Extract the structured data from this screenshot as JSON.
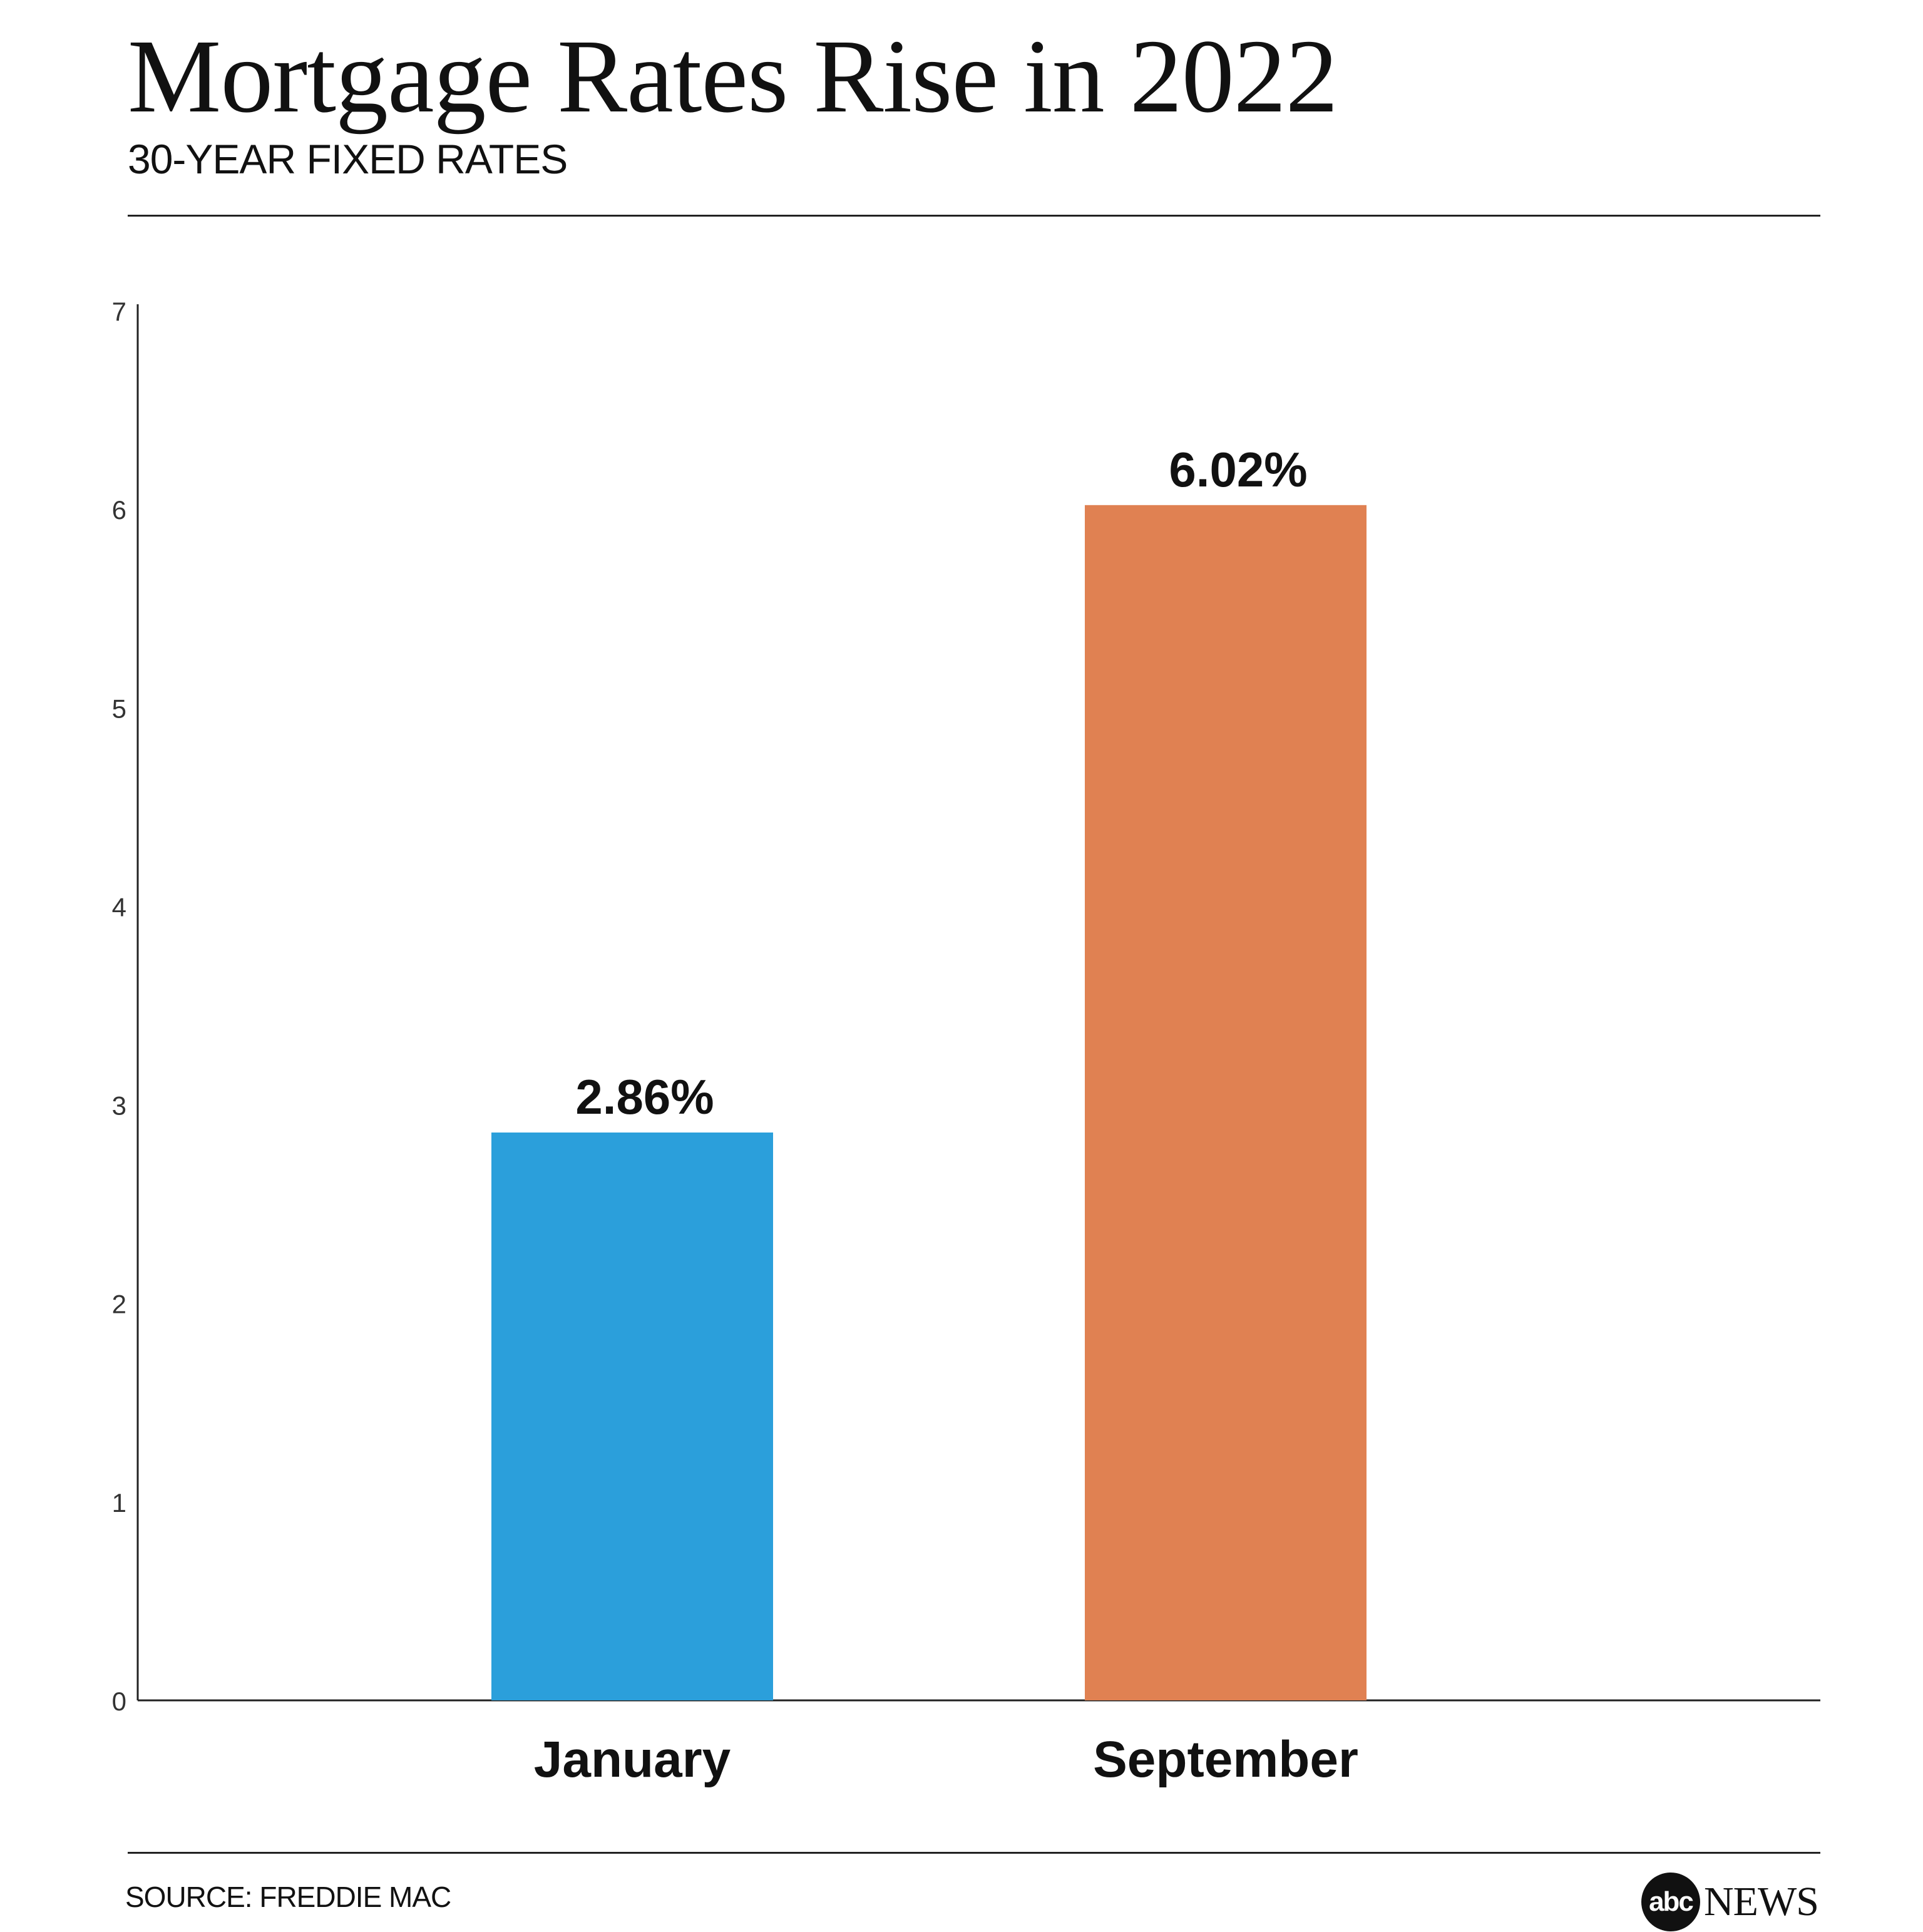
{
  "header": {
    "title": "Mortgage Rates Rise in 2022",
    "subtitle": "30-YEAR FIXED RATES"
  },
  "footer": {
    "source": "SOURCE: FREDDIE MAC",
    "logo_badge": "abc",
    "logo_word": "NEWS"
  },
  "chart_data": {
    "type": "bar",
    "title": "Mortgage Rates Rise in 2022",
    "subtitle": "30-YEAR FIXED RATES",
    "xlabel": "",
    "ylabel": "",
    "categories": [
      "January",
      "September"
    ],
    "values": [
      2.86,
      6.02
    ],
    "value_labels": [
      "2.86%",
      "6.02%"
    ],
    "colors": [
      "#2B9FDB",
      "#E08152"
    ],
    "ylim": [
      0,
      7
    ],
    "yticks": [
      0,
      1,
      2,
      3,
      4,
      5,
      6,
      7
    ],
    "grid": false,
    "legend": "none"
  }
}
